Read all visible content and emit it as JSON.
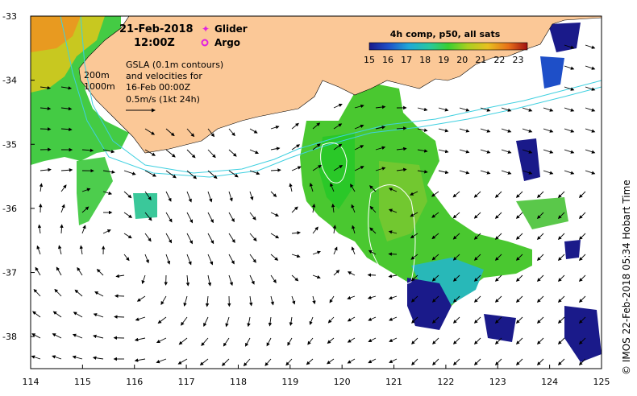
{
  "header": {
    "date": "21-Feb-2018",
    "time": "12:00Z"
  },
  "legend": {
    "glider_label": "Glider",
    "argo_label": "Argo",
    "glider_color": "#e020e0",
    "argo_color": "#e020e0"
  },
  "annotation": {
    "line1": "GSLA (0.1m contours)",
    "line2": "and velocities for",
    "line3": "16-Feb 00:00Z",
    "line4": "0.5m/s (1kt 24h)"
  },
  "isobaths": {
    "label_200": "200m",
    "label_1000": "1000m",
    "color": "#3fd0e0"
  },
  "colorbar": {
    "title": "4h comp, p50, all sats",
    "ticks": [
      "15",
      "16",
      "17",
      "18",
      "19",
      "20",
      "21",
      "22",
      "23"
    ],
    "min": 15,
    "max": 23.5
  },
  "credit": "© IMOS 22-Feb-2018 05:34 Hobart Time",
  "axes": {
    "x_ticks": [
      "114",
      "115",
      "116",
      "117",
      "118",
      "119",
      "120",
      "121",
      "122",
      "123",
      "124",
      "125"
    ],
    "y_ticks": [
      "-33",
      "-34",
      "-35",
      "-36",
      "-37",
      "-38"
    ],
    "xlim": [
      114,
      125
    ],
    "ylim": [
      -38.5,
      -33
    ]
  },
  "colors": {
    "land": "#fbc897",
    "ocean": "#ffffff",
    "sst_cold": "#1a1a8a",
    "sst_mid": "#2ec82a",
    "sst_warm": "#f0a020"
  }
}
